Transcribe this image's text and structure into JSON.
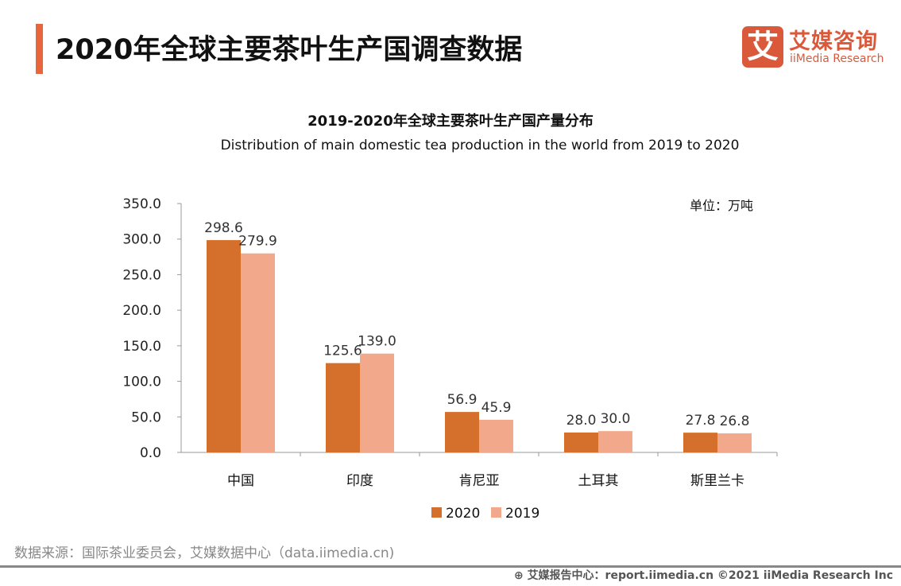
{
  "header": {
    "title": "2020年全球主要茶叶生产国调查数据",
    "logo_mark": "艾",
    "logo_cn": "艾媒咨询",
    "logo_en": "iiMedia Research"
  },
  "chart_data": {
    "type": "bar",
    "title": "2019-2020年全球主要茶叶生产国产量分布",
    "subtitle": "Distribution of main domestic tea production in the world from 2019 to 2020",
    "unit": "单位：万吨",
    "categories": [
      "中国",
      "印度",
      "肯尼亚",
      "土耳其",
      "斯里兰卡"
    ],
    "series": [
      {
        "name": "2020",
        "color": "#d4702b",
        "values": [
          298.6,
          125.6,
          56.9,
          28.0,
          27.8
        ]
      },
      {
        "name": "2019",
        "color": "#f2a98b",
        "values": [
          279.9,
          139.0,
          45.9,
          30.0,
          26.8
        ]
      }
    ],
    "ylim": [
      0,
      350
    ],
    "yticks": [
      "0.0",
      "50.0",
      "100.0",
      "150.0",
      "200.0",
      "250.0",
      "300.0",
      "350.0"
    ],
    "grid": false,
    "legend": "bottom"
  },
  "footer": {
    "source": "数据来源：国际茶业委员会，艾媒数据中心（data.iimedia.cn)",
    "credit": "艾媒报告中心：report.iimedia.cn   ©2021  iiMedia Research  Inc"
  }
}
